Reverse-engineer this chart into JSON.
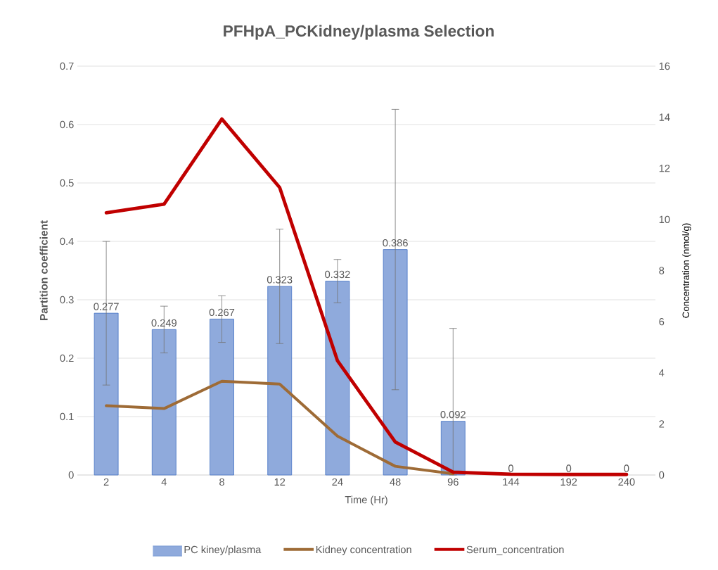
{
  "chart_data": {
    "type": "bar",
    "title": "PFHpA_PCKidney/plasma  Selection",
    "xlabel": "Time (Hr)",
    "ylabel": "Partition coefficient",
    "y2label": "Concentration (nmol/g)",
    "categories": [
      "2",
      "4",
      "8",
      "12",
      "24",
      "48",
      "96",
      "144",
      "192",
      "240"
    ],
    "ylim": [
      0,
      0.7
    ],
    "yticks": [
      0,
      0.1,
      0.2,
      0.3,
      0.4,
      0.5,
      0.6,
      0.7
    ],
    "y2lim": [
      0,
      16
    ],
    "y2ticks": [
      0,
      2,
      4,
      6,
      8,
      10,
      12,
      14,
      16
    ],
    "grid": "y",
    "legend": "bottom",
    "series": [
      {
        "name": "PC kiney/plasma",
        "color": "#8faadc",
        "values": [
          0.277,
          0.249,
          0.267,
          0.323,
          0.332,
          0.386,
          0.092,
          0,
          0,
          0
        ],
        "value_labels": [
          "0.277",
          "0.249",
          "0.267",
          "0.323",
          "0.332",
          "0.386",
          "0.092",
          "0",
          "0",
          "0"
        ],
        "errors": [
          0.123,
          0.04,
          0.04,
          0.098,
          0.037,
          0.24,
          [
            0,
            0.251
          ],
          null,
          null,
          null
        ]
      },
      {
        "name": "Kidney concentration",
        "type": "line",
        "axis": "y2",
        "color": "#9e6b36",
        "values": [
          2.71,
          2.6,
          3.67,
          3.56,
          1.52,
          0.34,
          0.05,
          null,
          null,
          null
        ]
      },
      {
        "name": "Serum_concentration",
        "type": "line",
        "axis": "y2",
        "color": "#c00000",
        "values": [
          10.26,
          10.6,
          13.93,
          11.25,
          4.47,
          1.29,
          0.11,
          0.03,
          0.02,
          0.02
        ]
      }
    ]
  }
}
